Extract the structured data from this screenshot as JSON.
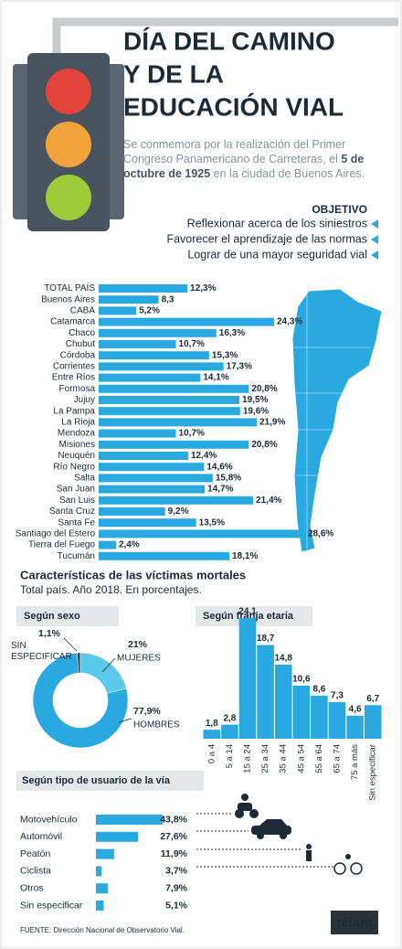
{
  "header": {
    "title_lines": [
      "DÍA DEL CAMINO",
      "Y DE LA",
      "EDUCACIÓN VIAL"
    ],
    "subtitle_parts": [
      "Se conmemora por la realización del Primer Congreso Panamericano de Carreteras, el ",
      "5 de octubre de 1925",
      " en la ciudad de Buenos Aires."
    ],
    "objective_title": "OBJETIVO",
    "objectives": [
      "Reflexionar acerca de los siniestros",
      "Favorecer el aprendizaje de las normas",
      "Lograr de una mayor seguridad vial"
    ]
  },
  "section": {
    "title": "Características de las víctimas mortales",
    "subtitle": "Total país. Año 2018. En porcentajes."
  },
  "chart_data": [
    {
      "type": "bar",
      "orientation": "horizontal",
      "color": "#29a9e0",
      "categories": [
        "TOTAL PAÍS",
        "Buenos Aires",
        "CABA",
        "Catamarca",
        "Chaco",
        "Chubut",
        "Córdoba",
        "Corrientes",
        "Entre Ríos",
        "Formosa",
        "Jujuy",
        "La Pampa",
        "La Rioja",
        "Mendoza",
        "Misiones",
        "Neuquén",
        "Río Negro",
        "Salta",
        "San Juan",
        "San Luis",
        "Santa Cruz",
        "Santa Fe",
        "Santiago del Estero",
        "Tierra del Fuego",
        "Tucumán"
      ],
      "values": [
        12.3,
        8.3,
        5.2,
        24.3,
        16.3,
        10.7,
        15.3,
        17.3,
        14.1,
        20.8,
        19.5,
        19.6,
        21.9,
        10.7,
        20.8,
        12.4,
        14.6,
        15.8,
        14.7,
        21.4,
        9.2,
        13.5,
        28.6,
        2.4,
        18.1
      ],
      "value_labels": [
        "12,3%",
        "8,3",
        "5,2%",
        "24,3%",
        "16,3%",
        "10,7%",
        "15,3%",
        "17,3%",
        "14,1%",
        "20,8%",
        "19,5%",
        "19,6%",
        "21,9%",
        "10,7%",
        "20,8%",
        "12,4%",
        "14,6%",
        "15,8%",
        "14,7%",
        "21,4%",
        "9,2%",
        "13,5%",
        "28,6%",
        "2,4%",
        "18,1%"
      ]
    },
    {
      "type": "pie",
      "donut": true,
      "title": "Según sexo",
      "categories": [
        "SIN ESPECIFICAR",
        "MUJERES",
        "HOMBRES"
      ],
      "values": [
        1.1,
        21,
        77.9
      ],
      "value_labels": [
        "1,1%",
        "21%",
        "77,9%"
      ],
      "colors": [
        "#3a3f44",
        "#5cc8ea",
        "#29a9e0"
      ]
    },
    {
      "type": "bar",
      "orientation": "vertical",
      "title": "Según franja etaria",
      "color": "#29a9e0",
      "categories": [
        "0 a 4",
        "5 a 14",
        "15 a 24",
        "25 a 34",
        "35 a 44",
        "45 a 54",
        "55 a 64",
        "65 a 74",
        "75 a más",
        "Sin especificar"
      ],
      "values": [
        1.8,
        2.8,
        24.1,
        18.7,
        14.8,
        10.6,
        8.6,
        7.3,
        4.6,
        6.7
      ],
      "value_labels": [
        "1,8",
        "2,8",
        "24,1",
        "18,7",
        "14,8",
        "10,6",
        "8,6",
        "7,3",
        "4,6",
        "6,7"
      ]
    },
    {
      "type": "bar",
      "orientation": "horizontal",
      "title": "Según tipo de usuario de la vía",
      "color": "#29a9e0",
      "categories": [
        "Motovehículo",
        "Automóvil",
        "Peatón",
        "Ciclista",
        "Otros",
        "Sin especificar"
      ],
      "values": [
        43.8,
        27.6,
        11.9,
        3.7,
        7.9,
        5.1
      ],
      "value_labels": [
        "43,8%",
        "27,6%",
        "11,9%",
        "3,7%",
        "7,9%",
        "5,1%"
      ]
    }
  ],
  "source": "FUENTE: Dirección Nacional de Observatorio Vial.",
  "logo": "télam"
}
